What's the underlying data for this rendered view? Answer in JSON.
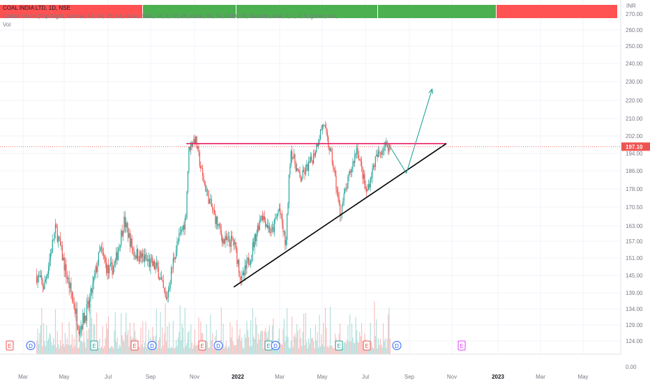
{
  "chart": {
    "symbol": "COAL INDIA LTD, 1D, NSE",
    "indicator": "Golbox Vtech (Top Right, Normal, 14, 14, 20, 14, close, SMA, 14, 2, 12, 26, close, 16, 14, RMA, 20, Session, true, 0, 1, 2, 3, green, red, white)",
    "vol_label": "Vol",
    "currency": "INR",
    "last_price": "197.10",
    "colors": {
      "up_candle": "#26a69a",
      "down_candle": "#ef5350",
      "resistance_line": "#e91e63",
      "trendline": "#000000",
      "projection": "#26a69a",
      "panel_green": "#4caf50",
      "panel_red": "#ff5252",
      "price_label_bg": "#ef5350"
    },
    "price_ticks": [
      "270.00",
      "260.00",
      "250.00",
      "240.00",
      "230.00",
      "220.00",
      "210.00",
      "202.00",
      "194.00",
      "186.00",
      "178.00",
      "170.50",
      "163.00",
      "157.00",
      "151.00",
      "145.00",
      "139.00",
      "134.00",
      "129.00",
      "124.00",
      "0.00"
    ],
    "time_ticks": [
      "Mar",
      "May",
      "Jul",
      "Sep",
      "Nov",
      "2022",
      "Mar",
      "May",
      "Jul",
      "Sep",
      "Nov",
      "2023",
      "Mar",
      "May"
    ],
    "event_markers": [
      "E",
      "D",
      "E",
      "E",
      "D",
      "E",
      "D",
      "E",
      "D",
      "E",
      "E",
      "D",
      "E"
    ]
  },
  "chart_data": {
    "type": "candlestick",
    "title": "COAL INDIA LTD, 1D, NSE",
    "y_unit": "INR",
    "ylim": [
      120,
      270
    ],
    "x_range": [
      "2021-02-15",
      "2023-06-10"
    ],
    "price_path": [
      {
        "date": "2021-02-22",
        "price": 145
      },
      {
        "date": "2021-03-05",
        "price": 141
      },
      {
        "date": "2021-03-22",
        "price": 162
      },
      {
        "date": "2021-04-06",
        "price": 146
      },
      {
        "date": "2021-04-26",
        "price": 128
      },
      {
        "date": "2021-05-10",
        "price": 135
      },
      {
        "date": "2021-05-27",
        "price": 154
      },
      {
        "date": "2021-06-08",
        "price": 146
      },
      {
        "date": "2021-06-18",
        "price": 149
      },
      {
        "date": "2021-07-01",
        "price": 165
      },
      {
        "date": "2021-07-15",
        "price": 153
      },
      {
        "date": "2021-08-04",
        "price": 150
      },
      {
        "date": "2021-08-20",
        "price": 147
      },
      {
        "date": "2021-09-01",
        "price": 136
      },
      {
        "date": "2021-09-14",
        "price": 153
      },
      {
        "date": "2021-09-30",
        "price": 166
      },
      {
        "date": "2021-10-05",
        "price": 197
      },
      {
        "date": "2021-10-14",
        "price": 201
      },
      {
        "date": "2021-10-25",
        "price": 183
      },
      {
        "date": "2021-11-05",
        "price": 172
      },
      {
        "date": "2021-11-25",
        "price": 157
      },
      {
        "date": "2021-12-10",
        "price": 157
      },
      {
        "date": "2021-12-22",
        "price": 143
      },
      {
        "date": "2022-01-05",
        "price": 153
      },
      {
        "date": "2022-01-20",
        "price": 168
      },
      {
        "date": "2022-02-04",
        "price": 160
      },
      {
        "date": "2022-02-15",
        "price": 170
      },
      {
        "date": "2022-02-25",
        "price": 155
      },
      {
        "date": "2022-03-04",
        "price": 196
      },
      {
        "date": "2022-03-18",
        "price": 182
      },
      {
        "date": "2022-04-06",
        "price": 192
      },
      {
        "date": "2022-04-21",
        "price": 208
      },
      {
        "date": "2022-05-05",
        "price": 190
      },
      {
        "date": "2022-05-16",
        "price": 168
      },
      {
        "date": "2022-06-01",
        "price": 186
      },
      {
        "date": "2022-06-10",
        "price": 197
      },
      {
        "date": "2022-06-24",
        "price": 176
      },
      {
        "date": "2022-07-07",
        "price": 191
      },
      {
        "date": "2022-07-21",
        "price": 198
      },
      {
        "date": "2022-07-29",
        "price": 197
      }
    ],
    "annotations": [
      {
        "type": "horizontal_resistance",
        "price": 198.5,
        "from": "2021-10-01",
        "to": "2022-10-20"
      },
      {
        "type": "rising_support",
        "from": {
          "date": "2021-12-10",
          "price": 141
        },
        "to": {
          "date": "2022-10-20",
          "price": 198.5
        }
      },
      {
        "type": "projection",
        "points": [
          {
            "date": "2022-07-29",
            "price": 197
          },
          {
            "date": "2022-08-22",
            "price": 185
          },
          {
            "date": "2022-09-29",
            "price": 226
          }
        ]
      }
    ],
    "volume_bars_color_by": "candle direction"
  }
}
